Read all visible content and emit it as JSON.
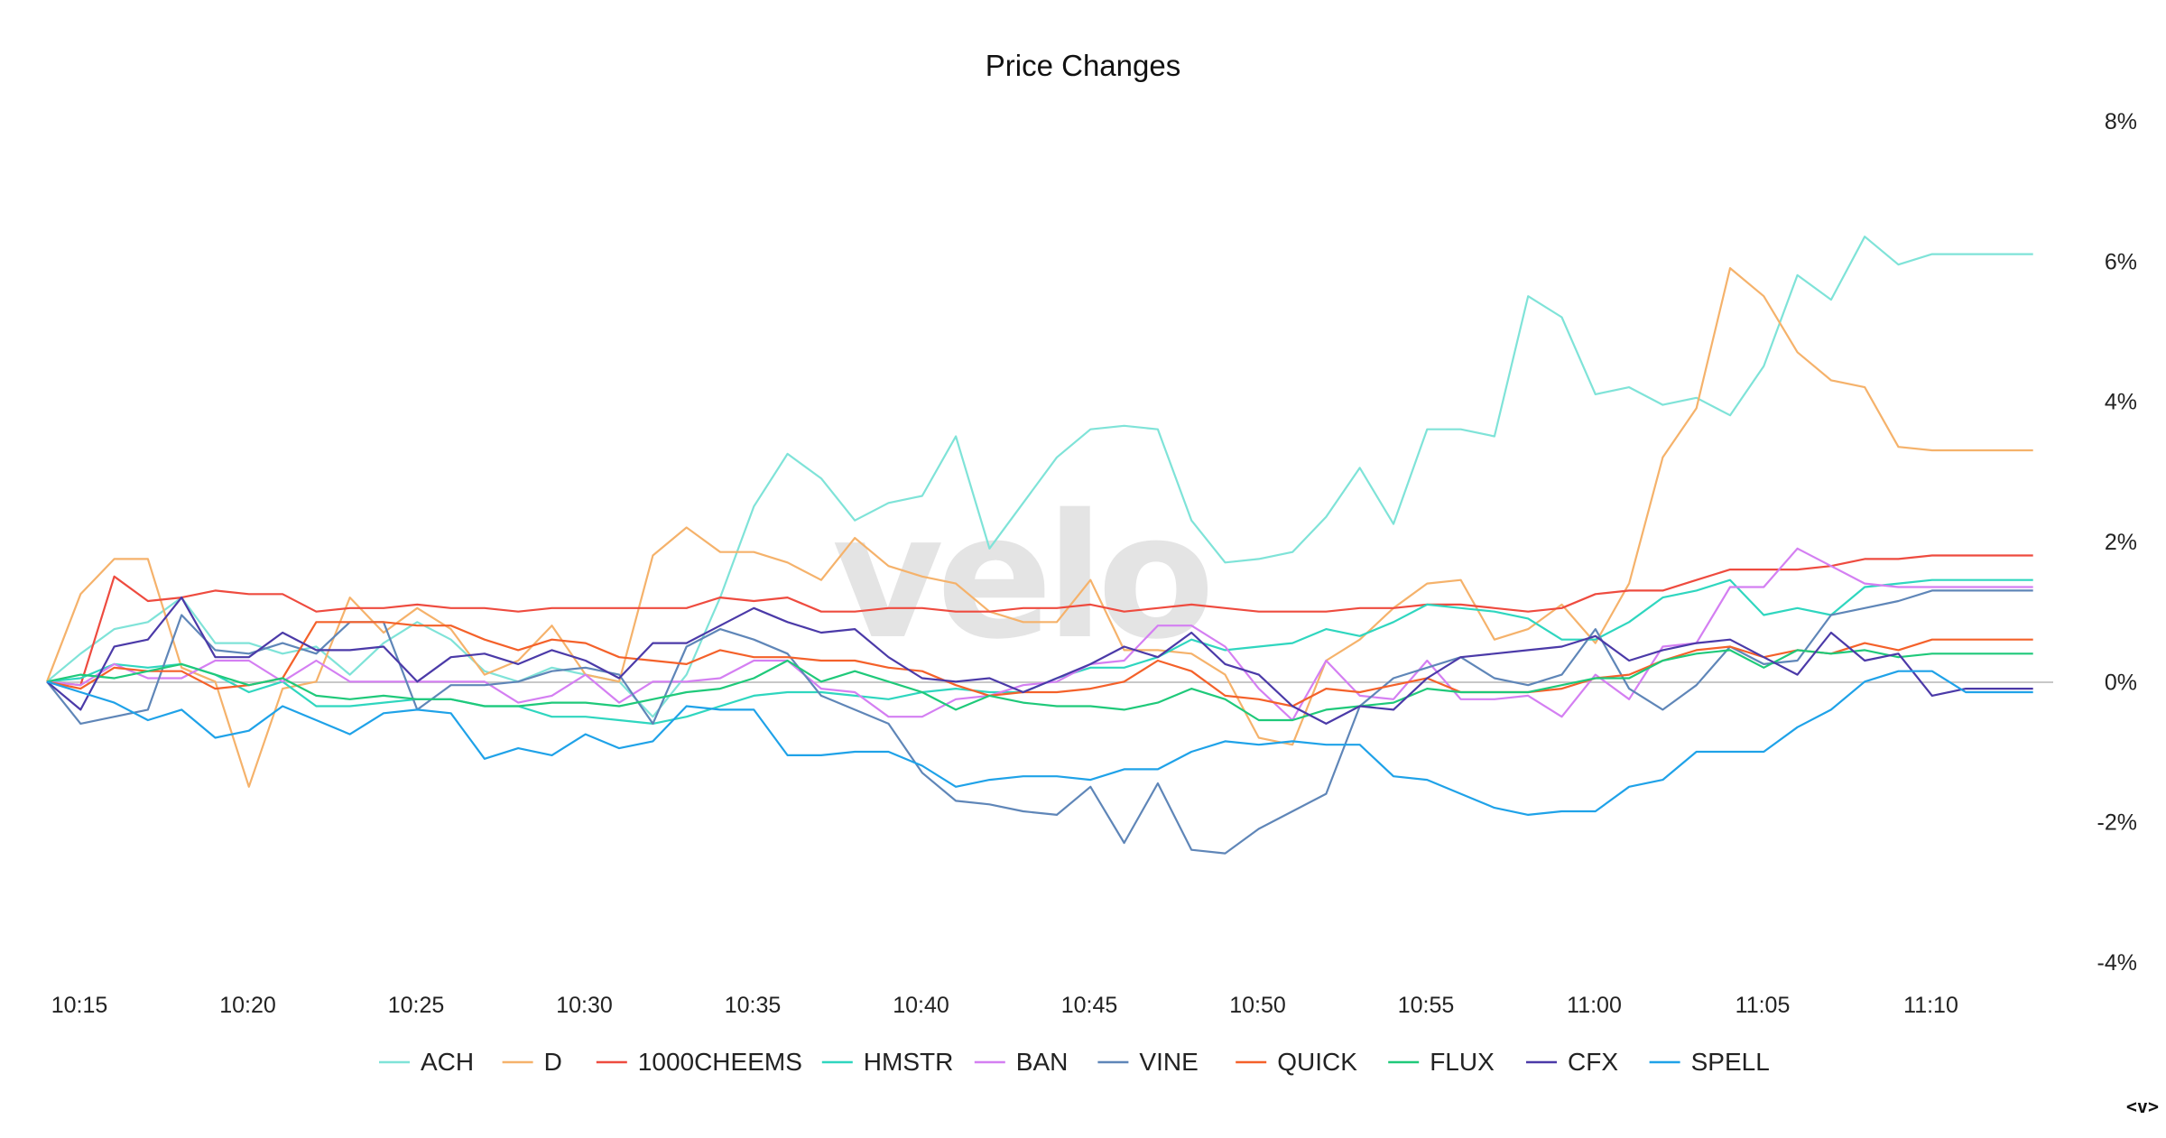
{
  "chart_data": {
    "type": "line",
    "title": "Price Changes",
    "ylim": [
      -4,
      8
    ],
    "y_ticks": [
      "8%",
      "6%",
      "4%",
      "2%",
      "0%",
      "-2%",
      "-4%"
    ],
    "y_tick_values": [
      8,
      6,
      4,
      2,
      0,
      -2,
      -4
    ],
    "x_ticks": [
      "10:15",
      "10:20",
      "10:25",
      "10:30",
      "10:35",
      "10:40",
      "10:45",
      "10:50",
      "10:55",
      "11:00",
      "11:05",
      "11:10"
    ],
    "x_minutes": [
      0,
      1,
      2,
      3,
      4,
      5,
      6,
      7,
      8,
      9,
      10,
      11,
      12,
      13,
      14,
      15,
      16,
      17,
      18,
      19,
      20,
      21,
      22,
      23,
      24,
      25,
      26,
      27,
      28,
      29,
      30,
      31,
      32,
      33,
      34,
      35,
      36,
      37,
      38,
      39,
      40,
      41,
      42,
      43,
      44,
      45,
      46,
      47,
      48,
      49,
      50,
      51,
      52,
      53,
      54,
      55,
      56,
      57,
      58,
      59
    ],
    "grid": false,
    "legend_position": "bottom",
    "series": [
      {
        "name": "ACH",
        "color": "#7fe3d8",
        "values": [
          0,
          0.4,
          0.75,
          0.85,
          1.2,
          0.55,
          0.55,
          0.4,
          0.5,
          0.1,
          0.55,
          0.85,
          0.6,
          0.15,
          0.0,
          0.2,
          0.1,
          0.0,
          -0.5,
          0.1,
          1.2,
          2.5,
          3.25,
          2.9,
          2.3,
          2.55,
          2.65,
          3.5,
          1.9,
          2.55,
          3.2,
          3.6,
          3.65,
          3.6,
          2.3,
          1.7,
          1.75,
          1.85,
          2.35,
          3.05,
          2.25,
          3.6,
          3.6,
          3.5,
          5.5,
          5.2,
          4.1,
          4.2,
          3.95,
          4.05,
          3.8,
          4.5,
          5.8,
          5.45,
          6.35,
          5.95,
          6.1,
          6.1,
          6.1,
          6.1
        ]
      },
      {
        "name": "D",
        "color": "#f5b26b",
        "values": [
          0,
          1.25,
          1.75,
          1.75,
          0.2,
          0.0,
          -1.5,
          -0.1,
          0.0,
          1.2,
          0.7,
          1.05,
          0.75,
          0.1,
          0.3,
          0.8,
          0.1,
          0.0,
          1.8,
          2.2,
          1.85,
          1.85,
          1.7,
          1.45,
          2.05,
          1.65,
          1.5,
          1.4,
          1.0,
          0.85,
          0.85,
          1.45,
          0.45,
          0.45,
          0.4,
          0.1,
          -0.8,
          -0.9,
          0.3,
          0.6,
          1.05,
          1.4,
          1.45,
          0.6,
          0.75,
          1.1,
          0.55,
          1.4,
          3.2,
          3.9,
          5.9,
          5.5,
          4.7,
          4.3,
          4.2,
          3.35,
          3.3,
          3.3,
          3.3,
          3.3
        ]
      },
      {
        "name": "1000CHEEMS",
        "color": "#ee4b3f",
        "values": [
          0,
          -0.05,
          1.5,
          1.15,
          1.2,
          1.3,
          1.25,
          1.25,
          1.0,
          1.05,
          1.05,
          1.1,
          1.05,
          1.05,
          1.0,
          1.05,
          1.05,
          1.05,
          1.05,
          1.05,
          1.2,
          1.15,
          1.2,
          1.0,
          1.0,
          1.05,
          1.05,
          1.0,
          1.0,
          1.05,
          1.05,
          1.1,
          1.0,
          1.05,
          1.1,
          1.05,
          1.0,
          1.0,
          1.0,
          1.05,
          1.05,
          1.1,
          1.1,
          1.05,
          1.0,
          1.05,
          1.25,
          1.3,
          1.3,
          1.45,
          1.6,
          1.6,
          1.6,
          1.65,
          1.75,
          1.75,
          1.8,
          1.8,
          1.8,
          1.8
        ]
      },
      {
        "name": "HMSTR",
        "color": "#2fd6bf",
        "values": [
          0,
          0.05,
          0.25,
          0.2,
          0.25,
          0.1,
          -0.15,
          0.0,
          -0.35,
          -0.35,
          -0.3,
          -0.25,
          -0.25,
          -0.35,
          -0.35,
          -0.5,
          -0.5,
          -0.55,
          -0.6,
          -0.5,
          -0.35,
          -0.2,
          -0.15,
          -0.15,
          -0.2,
          -0.25,
          -0.15,
          -0.1,
          -0.15,
          -0.15,
          0.05,
          0.2,
          0.2,
          0.35,
          0.6,
          0.45,
          0.5,
          0.55,
          0.75,
          0.65,
          0.85,
          1.1,
          1.05,
          1.0,
          0.9,
          0.6,
          0.6,
          0.85,
          1.2,
          1.3,
          1.45,
          0.95,
          1.05,
          0.95,
          1.35,
          1.4,
          1.45,
          1.45,
          1.45,
          1.45
        ]
      },
      {
        "name": "BAN",
        "color": "#d47ff2",
        "values": [
          0,
          -0.05,
          0.25,
          0.05,
          0.05,
          0.3,
          0.3,
          0.0,
          0.3,
          0.0,
          0.0,
          0.0,
          0.0,
          0.0,
          -0.3,
          -0.2,
          0.1,
          -0.3,
          0.0,
          0.0,
          0.05,
          0.3,
          0.3,
          -0.1,
          -0.15,
          -0.5,
          -0.5,
          -0.25,
          -0.2,
          -0.05,
          0.0,
          0.25,
          0.3,
          0.8,
          0.8,
          0.5,
          -0.1,
          -0.55,
          0.3,
          -0.2,
          -0.25,
          0.3,
          -0.25,
          -0.25,
          -0.2,
          -0.5,
          0.1,
          -0.25,
          0.5,
          0.55,
          1.35,
          1.35,
          1.9,
          1.65,
          1.4,
          1.35,
          1.35,
          1.35,
          1.35,
          1.35
        ]
      },
      {
        "name": "VINE",
        "color": "#5f86b8",
        "values": [
          0,
          -0.6,
          -0.5,
          -0.4,
          0.95,
          0.45,
          0.4,
          0.55,
          0.4,
          0.85,
          0.85,
          -0.4,
          -0.05,
          -0.05,
          0.0,
          0.15,
          0.2,
          0.1,
          -0.6,
          0.5,
          0.75,
          0.6,
          0.4,
          -0.2,
          -0.4,
          -0.6,
          -1.3,
          -1.7,
          -1.75,
          -1.85,
          -1.9,
          -1.5,
          -2.3,
          -1.45,
          -2.4,
          -2.45,
          -2.1,
          -1.85,
          -1.6,
          -0.35,
          0.05,
          0.2,
          0.35,
          0.05,
          -0.05,
          0.1,
          0.75,
          -0.1,
          -0.4,
          -0.05,
          0.5,
          0.25,
          0.3,
          0.95,
          1.05,
          1.15,
          1.3,
          1.3,
          1.3,
          1.3
        ]
      },
      {
        "name": "QUICK",
        "color": "#f4612a",
        "values": [
          0,
          -0.1,
          0.2,
          0.15,
          0.15,
          -0.1,
          -0.05,
          0.05,
          0.85,
          0.85,
          0.85,
          0.8,
          0.8,
          0.6,
          0.45,
          0.6,
          0.55,
          0.35,
          0.3,
          0.25,
          0.45,
          0.35,
          0.35,
          0.3,
          0.3,
          0.2,
          0.15,
          -0.05,
          -0.2,
          -0.15,
          -0.15,
          -0.1,
          0.0,
          0.3,
          0.15,
          -0.2,
          -0.25,
          -0.35,
          -0.1,
          -0.15,
          -0.05,
          0.05,
          -0.15,
          -0.15,
          -0.15,
          -0.1,
          0.05,
          0.1,
          0.3,
          0.45,
          0.5,
          0.35,
          0.45,
          0.4,
          0.55,
          0.45,
          0.6,
          0.6,
          0.6,
          0.6
        ]
      },
      {
        "name": "FLUX",
        "color": "#1fc97a",
        "values": [
          0,
          0.1,
          0.05,
          0.15,
          0.25,
          0.1,
          -0.05,
          0.05,
          -0.2,
          -0.25,
          -0.2,
          -0.25,
          -0.25,
          -0.35,
          -0.35,
          -0.3,
          -0.3,
          -0.35,
          -0.25,
          -0.15,
          -0.1,
          0.05,
          0.3,
          0.0,
          0.15,
          0.0,
          -0.15,
          -0.4,
          -0.2,
          -0.3,
          -0.35,
          -0.35,
          -0.4,
          -0.3,
          -0.1,
          -0.25,
          -0.55,
          -0.55,
          -0.4,
          -0.35,
          -0.3,
          -0.1,
          -0.15,
          -0.15,
          -0.15,
          -0.05,
          0.05,
          0.05,
          0.3,
          0.4,
          0.45,
          0.2,
          0.45,
          0.4,
          0.45,
          0.35,
          0.4,
          0.4,
          0.4,
          0.4
        ]
      },
      {
        "name": "CFX",
        "color": "#4b3aa8",
        "values": [
          0,
          -0.4,
          0.5,
          0.6,
          1.2,
          0.35,
          0.35,
          0.7,
          0.45,
          0.45,
          0.5,
          0.0,
          0.35,
          0.4,
          0.25,
          0.45,
          0.3,
          0.05,
          0.55,
          0.55,
          0.8,
          1.05,
          0.85,
          0.7,
          0.75,
          0.35,
          0.05,
          0.0,
          0.05,
          -0.15,
          0.05,
          0.25,
          0.5,
          0.35,
          0.7,
          0.25,
          0.1,
          -0.35,
          -0.6,
          -0.35,
          -0.4,
          0.05,
          0.35,
          0.4,
          0.45,
          0.5,
          0.65,
          0.3,
          0.45,
          0.55,
          0.6,
          0.35,
          0.1,
          0.7,
          0.3,
          0.4,
          -0.2,
          -0.1,
          -0.1,
          -0.1
        ]
      },
      {
        "name": "SPELL",
        "color": "#1fa2e8",
        "values": [
          0,
          -0.15,
          -0.3,
          -0.55,
          -0.4,
          -0.8,
          -0.7,
          -0.35,
          -0.55,
          -0.75,
          -0.45,
          -0.4,
          -0.45,
          -1.1,
          -0.95,
          -1.05,
          -0.75,
          -0.95,
          -0.85,
          -0.35,
          -0.4,
          -0.4,
          -1.05,
          -1.05,
          -1.0,
          -1.0,
          -1.2,
          -1.5,
          -1.4,
          -1.35,
          -1.35,
          -1.4,
          -1.25,
          -1.25,
          -1.0,
          -0.85,
          -0.9,
          -0.85,
          -0.9,
          -0.9,
          -1.35,
          -1.4,
          -1.6,
          -1.8,
          -1.9,
          -1.85,
          -1.85,
          -1.5,
          -1.4,
          -1.0,
          -1.0,
          -1.0,
          -0.65,
          -0.4,
          0.0,
          0.15,
          0.15,
          -0.15,
          -0.15,
          -0.15
        ]
      }
    ]
  },
  "watermark": "velo",
  "corner_glyph": "<v>"
}
